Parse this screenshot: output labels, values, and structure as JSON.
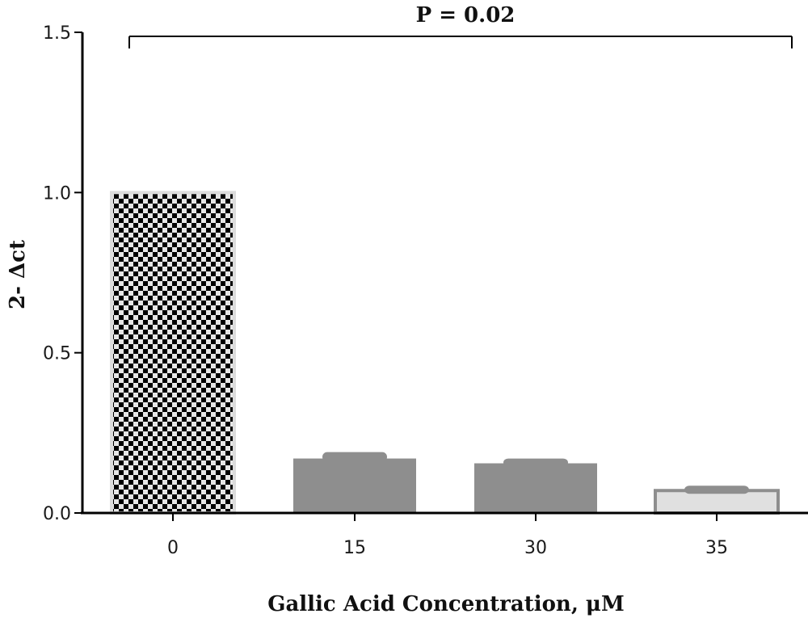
{
  "chart_data": {
    "type": "bar",
    "categories": [
      "0",
      "15",
      "30",
      "35"
    ],
    "values": [
      1.0,
      0.17,
      0.155,
      0.07
    ],
    "errors": [
      0.0,
      0.02,
      0.015,
      0.015
    ],
    "xlabel": "Gallic Acid Concentration, μM",
    "ylabel": "2- Δct",
    "ylim": [
      0,
      1.5
    ],
    "yticks": [
      "0.0",
      "0.5",
      "1.0",
      "1.5"
    ],
    "grid": false,
    "annotation": "P = 0.02",
    "bar_styles": [
      {
        "fill": "checkerboard",
        "color": "#000000",
        "background": "#e4e4e4"
      },
      {
        "fill": "solid",
        "color": "#8e8e8e"
      },
      {
        "fill": "solid",
        "color": "#8e8e8e"
      },
      {
        "fill": "solid",
        "color": "#e0e0e0",
        "stroke": "#8e8e8e"
      }
    ]
  }
}
